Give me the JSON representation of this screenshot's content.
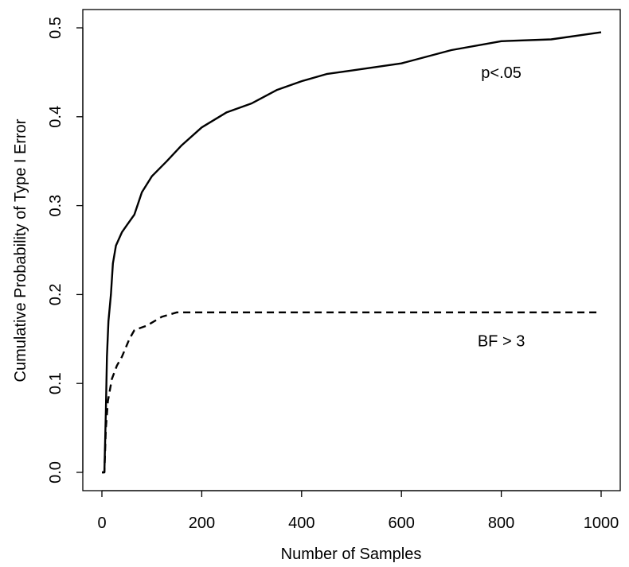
{
  "chart_data": {
    "type": "line",
    "title": "",
    "xlabel": "Number of Samples",
    "ylabel": "Cumulative Probability of Type I Error",
    "xlim": [
      0,
      1000
    ],
    "ylim": [
      0,
      0.5
    ],
    "xticks": [
      "0",
      "200",
      "400",
      "600",
      "800",
      "1000"
    ],
    "xtick_values": [
      0,
      200,
      400,
      600,
      800,
      1000
    ],
    "yticks": [
      "0.0",
      "0.1",
      "0.2",
      "0.3",
      "0.4",
      "0.5"
    ],
    "ytick_values": [
      0,
      0.1,
      0.2,
      0.3,
      0.4,
      0.5
    ],
    "grid": false,
    "series": [
      {
        "name": "p<.05",
        "style": "solid",
        "x": [
          0,
          5,
          8,
          10,
          13,
          18,
          22,
          28,
          40,
          50,
          65,
          80,
          100,
          130,
          160,
          200,
          250,
          300,
          350,
          400,
          450,
          500,
          600,
          700,
          800,
          900,
          1000
        ],
        "y": [
          0,
          0,
          0.07,
          0.13,
          0.17,
          0.2,
          0.235,
          0.255,
          0.27,
          0.278,
          0.29,
          0.315,
          0.333,
          0.35,
          0.368,
          0.388,
          0.405,
          0.415,
          0.43,
          0.44,
          0.448,
          0.452,
          0.46,
          0.475,
          0.485,
          0.487,
          0.495
        ]
      },
      {
        "name": "BF > 3",
        "style": "dashed",
        "x": [
          0,
          5,
          8,
          12,
          20,
          30,
          40,
          55,
          65,
          90,
          120,
          150,
          1000
        ],
        "y": [
          0,
          0,
          0.05,
          0.08,
          0.105,
          0.12,
          0.13,
          0.15,
          0.16,
          0.165,
          0.175,
          0.18,
          0.18
        ]
      }
    ],
    "annotations": [
      {
        "text": "p<.05",
        "x": 800,
        "y": 0.45
      },
      {
        "text": "BF > 3",
        "x": 800,
        "y": 0.148
      }
    ]
  }
}
